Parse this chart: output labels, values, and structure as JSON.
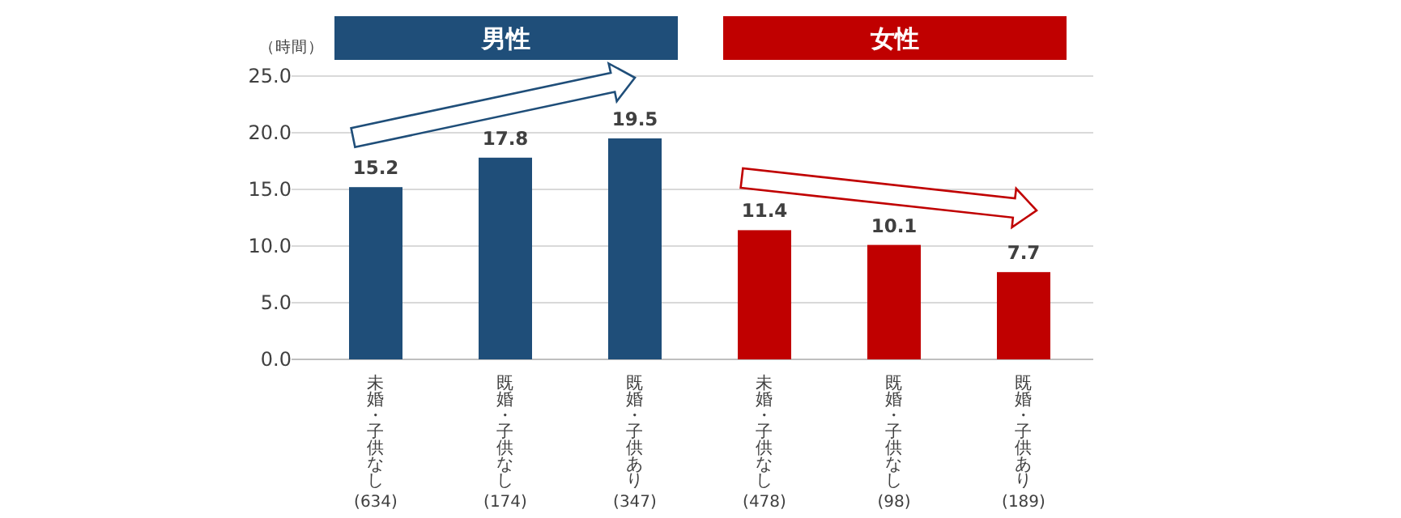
{
  "chart_data": {
    "type": "bar",
    "ylabel": "（時間）",
    "categories": [
      "未婚・子供なし\n(634)",
      "既婚・子供なし\n(174)",
      "既婚・子供あり\n(347)",
      "未婚・子供なし\n(478)",
      "既婚・子供なし\n(98)",
      "既婚・子供あり\n(189)"
    ],
    "series": [
      {
        "name": "男性",
        "color": "#1f4e79",
        "values": [
          15.2,
          17.8,
          19.5,
          null,
          null,
          null
        ]
      },
      {
        "name": "女性",
        "color": "#c00000",
        "values": [
          null,
          null,
          null,
          11.4,
          10.1,
          7.7
        ]
      }
    ],
    "ylim": [
      0,
      25
    ],
    "yticks": [
      {
        "value": 0,
        "label": "0.0"
      },
      {
        "value": 5,
        "label": "5.0"
      },
      {
        "value": 10,
        "label": "10.0"
      },
      {
        "value": 15,
        "label": "15.0"
      },
      {
        "value": 20,
        "label": "20.0"
      },
      {
        "value": 25,
        "label": "25.0"
      }
    ],
    "grid": "y",
    "data_labels": true,
    "legend": "top"
  }
}
